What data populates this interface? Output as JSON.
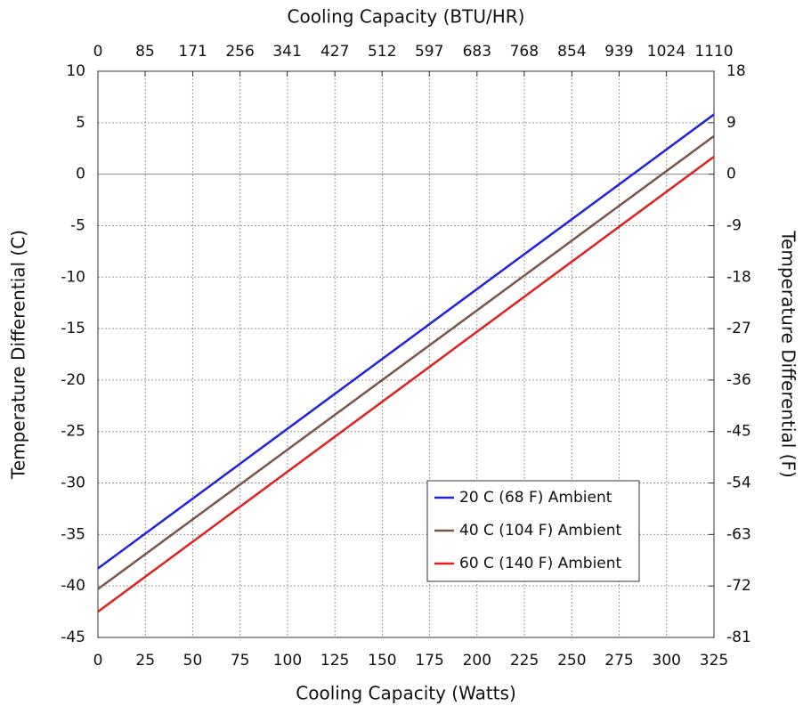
{
  "chart_data": {
    "type": "line",
    "xlabel": "Cooling Capacity (Watts)",
    "x2label": "Cooling Capacity (BTU/HR)",
    "ylabel": "Temperature Differential (C)",
    "y2label": "Temperature Differential (F)",
    "x": [
      0,
      325
    ],
    "series": [
      {
        "name": "20 C (68 F) Ambient",
        "color": "#2222dd",
        "values": [
          -38.3,
          5.8
        ]
      },
      {
        "name": "40 C (104 F) Ambient",
        "color": "#7a5548",
        "values": [
          -40.3,
          3.7
        ]
      },
      {
        "name": "60 C (140 F) Ambient",
        "color": "#e02020",
        "values": [
          -42.5,
          1.7
        ]
      }
    ],
    "xlim": [
      0,
      325
    ],
    "xticks": [
      0,
      25,
      50,
      75,
      100,
      125,
      150,
      175,
      200,
      225,
      250,
      275,
      300,
      325
    ],
    "x2lim": [
      0,
      1110
    ],
    "x2ticks": [
      0,
      85,
      171,
      256,
      341,
      427,
      512,
      597,
      683,
      768,
      854,
      939,
      1024,
      1110
    ],
    "ylim": [
      -45,
      10
    ],
    "yticks": [
      10,
      5,
      0,
      -5,
      -10,
      -15,
      -20,
      -25,
      -30,
      -35,
      -40,
      -45
    ],
    "y2lim": [
      -81,
      18
    ],
    "y2ticks": [
      18,
      9,
      0,
      -9,
      -18,
      -27,
      -36,
      -45,
      -54,
      -63,
      -72,
      -81
    ],
    "grid": true,
    "legend": "lower right"
  }
}
